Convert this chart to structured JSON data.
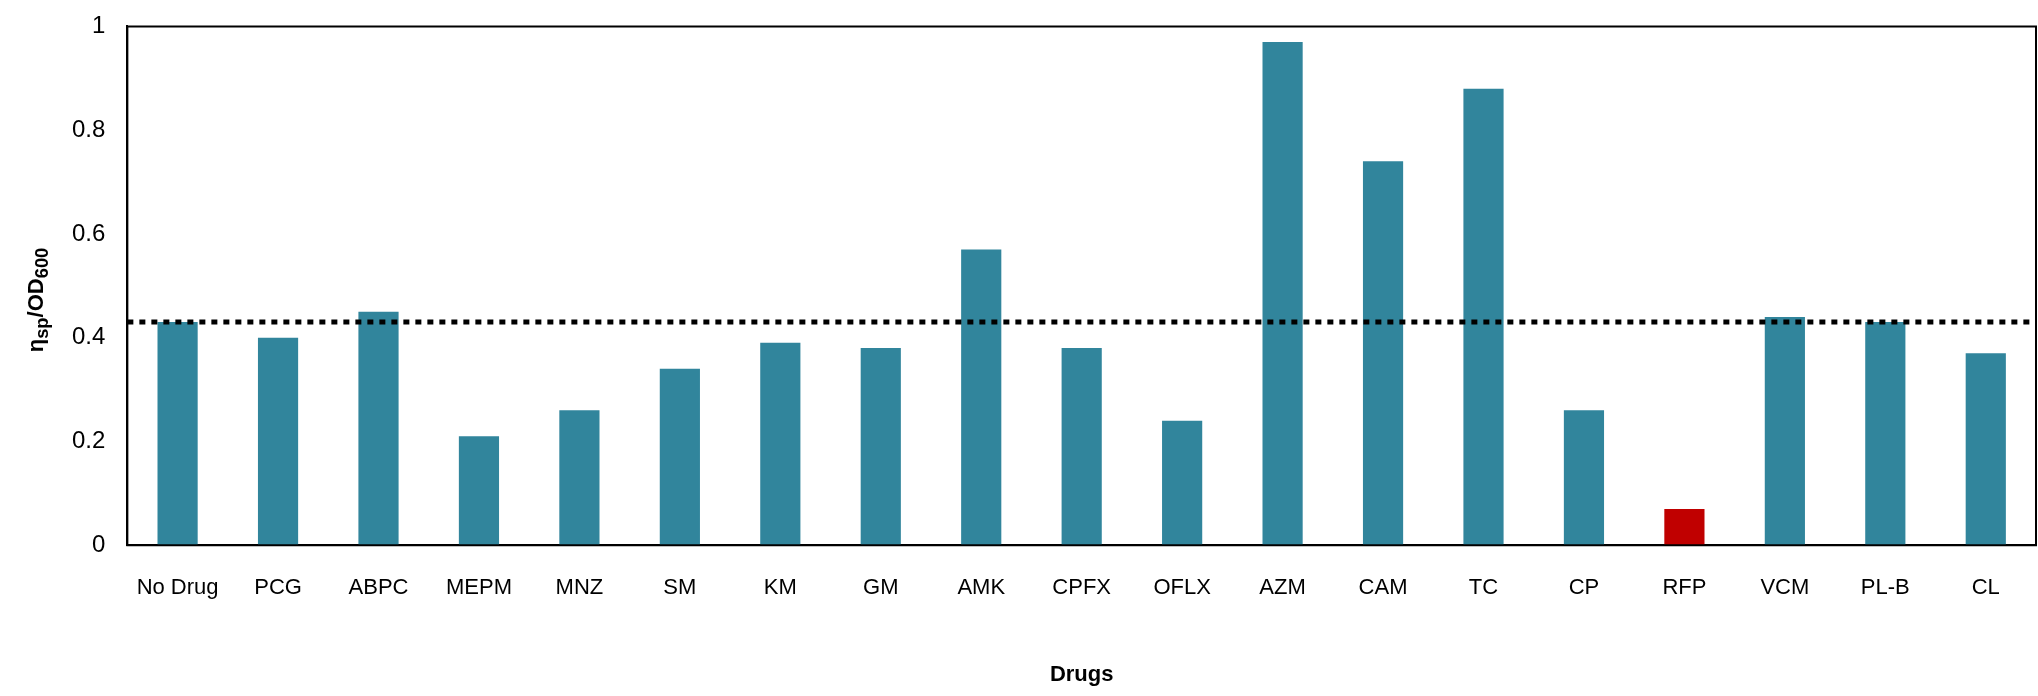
{
  "chart_data": {
    "type": "bar",
    "xlabel": "Drugs",
    "ylabel": "η$_{sp}$/OD$_{600}$",
    "categories": [
      "No Drug",
      "PCG",
      "ABPC",
      "MEPM",
      "MNZ",
      "SM",
      "KM",
      "GM",
      "AMK",
      "CPFX",
      "OFLX",
      "AZM",
      "CAM",
      "TC",
      "CP",
      "RFP",
      "VCM",
      "PL-B",
      "CL"
    ],
    "values": [
      0.43,
      0.4,
      0.45,
      0.21,
      0.26,
      0.34,
      0.39,
      0.38,
      0.57,
      0.38,
      0.24,
      0.97,
      0.74,
      0.88,
      0.26,
      0.07,
      0.44,
      0.43,
      0.37
    ],
    "colors": [
      "#31859c",
      "#31859c",
      "#31859c",
      "#31859c",
      "#31859c",
      "#31859c",
      "#31859c",
      "#31859c",
      "#31859c",
      "#31859c",
      "#31859c",
      "#31859c",
      "#31859c",
      "#31859c",
      "#31859c",
      "#c00000",
      "#31859c",
      "#31859c",
      "#31859c"
    ],
    "ylim": [
      0,
      1
    ],
    "yticks": [
      0,
      0.2,
      0.4,
      0.6,
      0.8,
      1
    ],
    "ref_lines": [
      {
        "axis": "y",
        "value": 0.43,
        "color": "#000000",
        "line_style": "dotted"
      }
    ],
    "grid": false,
    "legend": false
  }
}
